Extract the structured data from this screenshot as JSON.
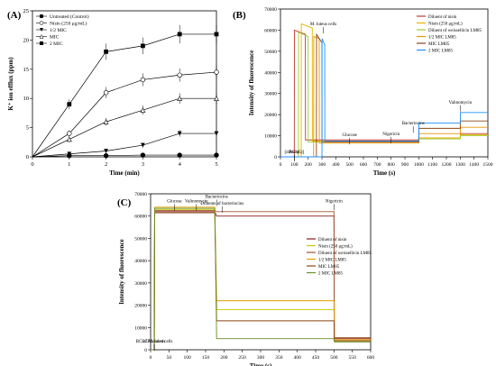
{
  "chart_data": [
    {
      "panel": "(A)",
      "type": "line",
      "ylabel": "K⁺ ion efflux (ppm)",
      "xlabel": "Time (min)",
      "xlim": [
        0,
        5
      ],
      "ylim": [
        0,
        25
      ],
      "xticks": [
        "0",
        "1",
        "2",
        "3",
        "4",
        "5"
      ],
      "yticks": [
        "0",
        "5",
        "10",
        "15",
        "20",
        "25"
      ],
      "x": [
        0,
        1,
        2,
        3,
        4,
        5
      ],
      "legend_position": "top-left",
      "series": [
        {
          "name": "Untreated (Control)",
          "marker": "filled-circle",
          "values": [
            0,
            0.2,
            0.2,
            0.3,
            0.3,
            0.3
          ]
        },
        {
          "name": "Nisin (250 μg/mL)",
          "marker": "open-circle",
          "values": [
            0,
            4,
            11,
            13.2,
            14,
            14.5
          ]
        },
        {
          "name": "1/2 MIC",
          "marker": "filled-triangle-down",
          "values": [
            0,
            0.5,
            1,
            2,
            4,
            4
          ]
        },
        {
          "name": "MIC",
          "marker": "open-triangle",
          "values": [
            0,
            3,
            6,
            8,
            10,
            10
          ]
        },
        {
          "name": "2 MIC",
          "marker": "filled-square",
          "values": [
            0,
            9,
            18,
            19,
            21,
            21
          ]
        }
      ]
    },
    {
      "panel": "(B)",
      "type": "line",
      "ylabel": "Intensity of fluorescence",
      "xlabel": "Time (s)",
      "xlim": [
        0,
        1500
      ],
      "ylim": [
        0,
        70000
      ],
      "xticks": [
        "0",
        "100",
        "200",
        "300",
        "400",
        "500",
        "600",
        "700",
        "800",
        "900",
        "1000",
        "1100",
        "1200",
        "1300",
        "1400",
        "1500"
      ],
      "yticks": [
        "0",
        "10000",
        "20000",
        "30000",
        "40000",
        "50000",
        "60000",
        "70000"
      ],
      "legend_position": "top-right",
      "annotations": [
        {
          "text": "M. luteus cells",
          "x": 310,
          "y": 61000
        },
        {
          "text": "Glucose",
          "x": 500,
          "y": 8500
        },
        {
          "text": "Nigericin",
          "x": 800,
          "y": 9000
        },
        {
          "text": "Bacteriocins",
          "x": 960,
          "y": 14000
        },
        {
          "text": "Valinomycin",
          "x": 1300,
          "y": 24000
        },
        {
          "text": "Probe",
          "x": 100,
          "y": 500
        },
        {
          "text": "[diSC3(5)]",
          "x": 100,
          "y": 500
        }
      ],
      "series": [
        {
          "name": "Diluent of nisin",
          "color": "#c0392b",
          "x": [
            0,
            100,
            101,
            180,
            181,
            1000,
            1001,
            1300,
            1301,
            1500
          ],
          "values": [
            0,
            0,
            60000,
            58000,
            8000,
            8000,
            9000,
            9000,
            11000,
            11000
          ]
        },
        {
          "name": "Nisin (250 μg/mL)",
          "color": "#e8b400",
          "x": [
            0,
            150,
            151,
            230,
            231,
            1000,
            1001,
            1300,
            1301,
            1500
          ],
          "values": [
            0,
            0,
            63000,
            61000,
            7500,
            7500,
            9000,
            9000,
            10500,
            10500
          ]
        },
        {
          "name": "Diluent of weissellicin LM85",
          "color": "#9acd32",
          "x": [
            0,
            130,
            131,
            200,
            201,
            1000,
            1001,
            1300,
            1301,
            1500
          ],
          "values": [
            0,
            0,
            59000,
            57000,
            7000,
            7000,
            8500,
            8500,
            10000,
            10000
          ]
        },
        {
          "name": "1/2 MIC LM85",
          "color": "#e69500",
          "x": [
            0,
            240,
            241,
            280,
            281,
            1000,
            1001,
            1300,
            1301,
            1500
          ],
          "values": [
            0,
            0,
            57000,
            56000,
            6500,
            6500,
            11000,
            11000,
            14000,
            14000
          ]
        },
        {
          "name": "MIC LM85",
          "color": "#8b4513",
          "x": [
            0,
            260,
            261,
            300,
            301,
            1000,
            1001,
            1300,
            1301,
            1500
          ],
          "values": [
            0,
            0,
            58000,
            54000,
            7000,
            7000,
            13500,
            13500,
            17000,
            17000
          ]
        },
        {
          "name": "2 MIC LM85",
          "color": "#1e90ff",
          "x": [
            0,
            300,
            301,
            320,
            321,
            1000,
            1001,
            1300,
            1301,
            1500
          ],
          "values": [
            0,
            0,
            56000,
            53000,
            7500,
            7500,
            16000,
            16000,
            21000,
            21000
          ]
        }
      ]
    },
    {
      "panel": "(C)",
      "type": "line",
      "ylabel": "Intensity of fluorescence",
      "xlabel": "Time (s)",
      "xlim": [
        0,
        600
      ],
      "ylim": [
        0,
        70000
      ],
      "xticks": [
        "0",
        "50",
        "100",
        "150",
        "200",
        "250",
        "300",
        "350",
        "400",
        "450",
        "500",
        "550",
        "600"
      ],
      "yticks": [
        "0",
        "10000",
        "20000",
        "30000",
        "40000",
        "50000",
        "60000",
        "70000"
      ],
      "legend_position": "center-right",
      "annotations": [
        {
          "text": "Glucose",
          "x": 65,
          "y": 65000
        },
        {
          "text": "Valinomycin",
          "x": 125,
          "y": 65000
        },
        {
          "text": "Bacteriocins",
          "x": 180,
          "y": 67000
        },
        {
          "text": "Diluents of bacteriocins",
          "x": 195,
          "y": 64000
        },
        {
          "text": "Nigericin",
          "x": 500,
          "y": 65000
        },
        {
          "text": "BCECF loaded cells",
          "x": 10,
          "y": 2000
        },
        {
          "text": "of M. luteus",
          "x": 10,
          "y": 2000
        }
      ],
      "series": [
        {
          "name": "Diluent of nisin",
          "color": "#8b1a1a",
          "x": [
            0,
            10,
            11,
            175,
            180,
            500,
            501,
            600
          ],
          "values": [
            0,
            0,
            62000,
            62000,
            60000,
            60000,
            5000,
            5000
          ]
        },
        {
          "name": "Nisin (250 μg/mL)",
          "color": "#c8c800",
          "x": [
            0,
            10,
            11,
            175,
            180,
            500,
            501,
            600
          ],
          "values": [
            0,
            0,
            63000,
            63000,
            18000,
            18000,
            4000,
            4000
          ]
        },
        {
          "name": "Diluent of weissellicin LM85",
          "color": "#a0522d",
          "x": [
            0,
            10,
            11,
            175,
            180,
            500,
            501,
            600
          ],
          "values": [
            0,
            0,
            62500,
            62500,
            62000,
            62000,
            5500,
            5500
          ]
        },
        {
          "name": "1/2 MIC LM85",
          "color": "#e0a000",
          "x": [
            0,
            10,
            11,
            175,
            180,
            500,
            501,
            600
          ],
          "values": [
            0,
            0,
            64000,
            64000,
            22000,
            22000,
            4500,
            4500
          ]
        },
        {
          "name": "MIC LM85",
          "color": "#8b4513",
          "x": [
            0,
            10,
            11,
            175,
            180,
            500,
            501,
            600
          ],
          "values": [
            0,
            0,
            61500,
            61500,
            13000,
            13000,
            4000,
            4000
          ]
        },
        {
          "name": "2 MIC LM85",
          "color": "#6b8e23",
          "x": [
            0,
            10,
            11,
            175,
            180,
            500,
            501,
            600
          ],
          "values": [
            0,
            0,
            63500,
            63500,
            5000,
            5000,
            3500,
            3500
          ]
        }
      ]
    }
  ]
}
